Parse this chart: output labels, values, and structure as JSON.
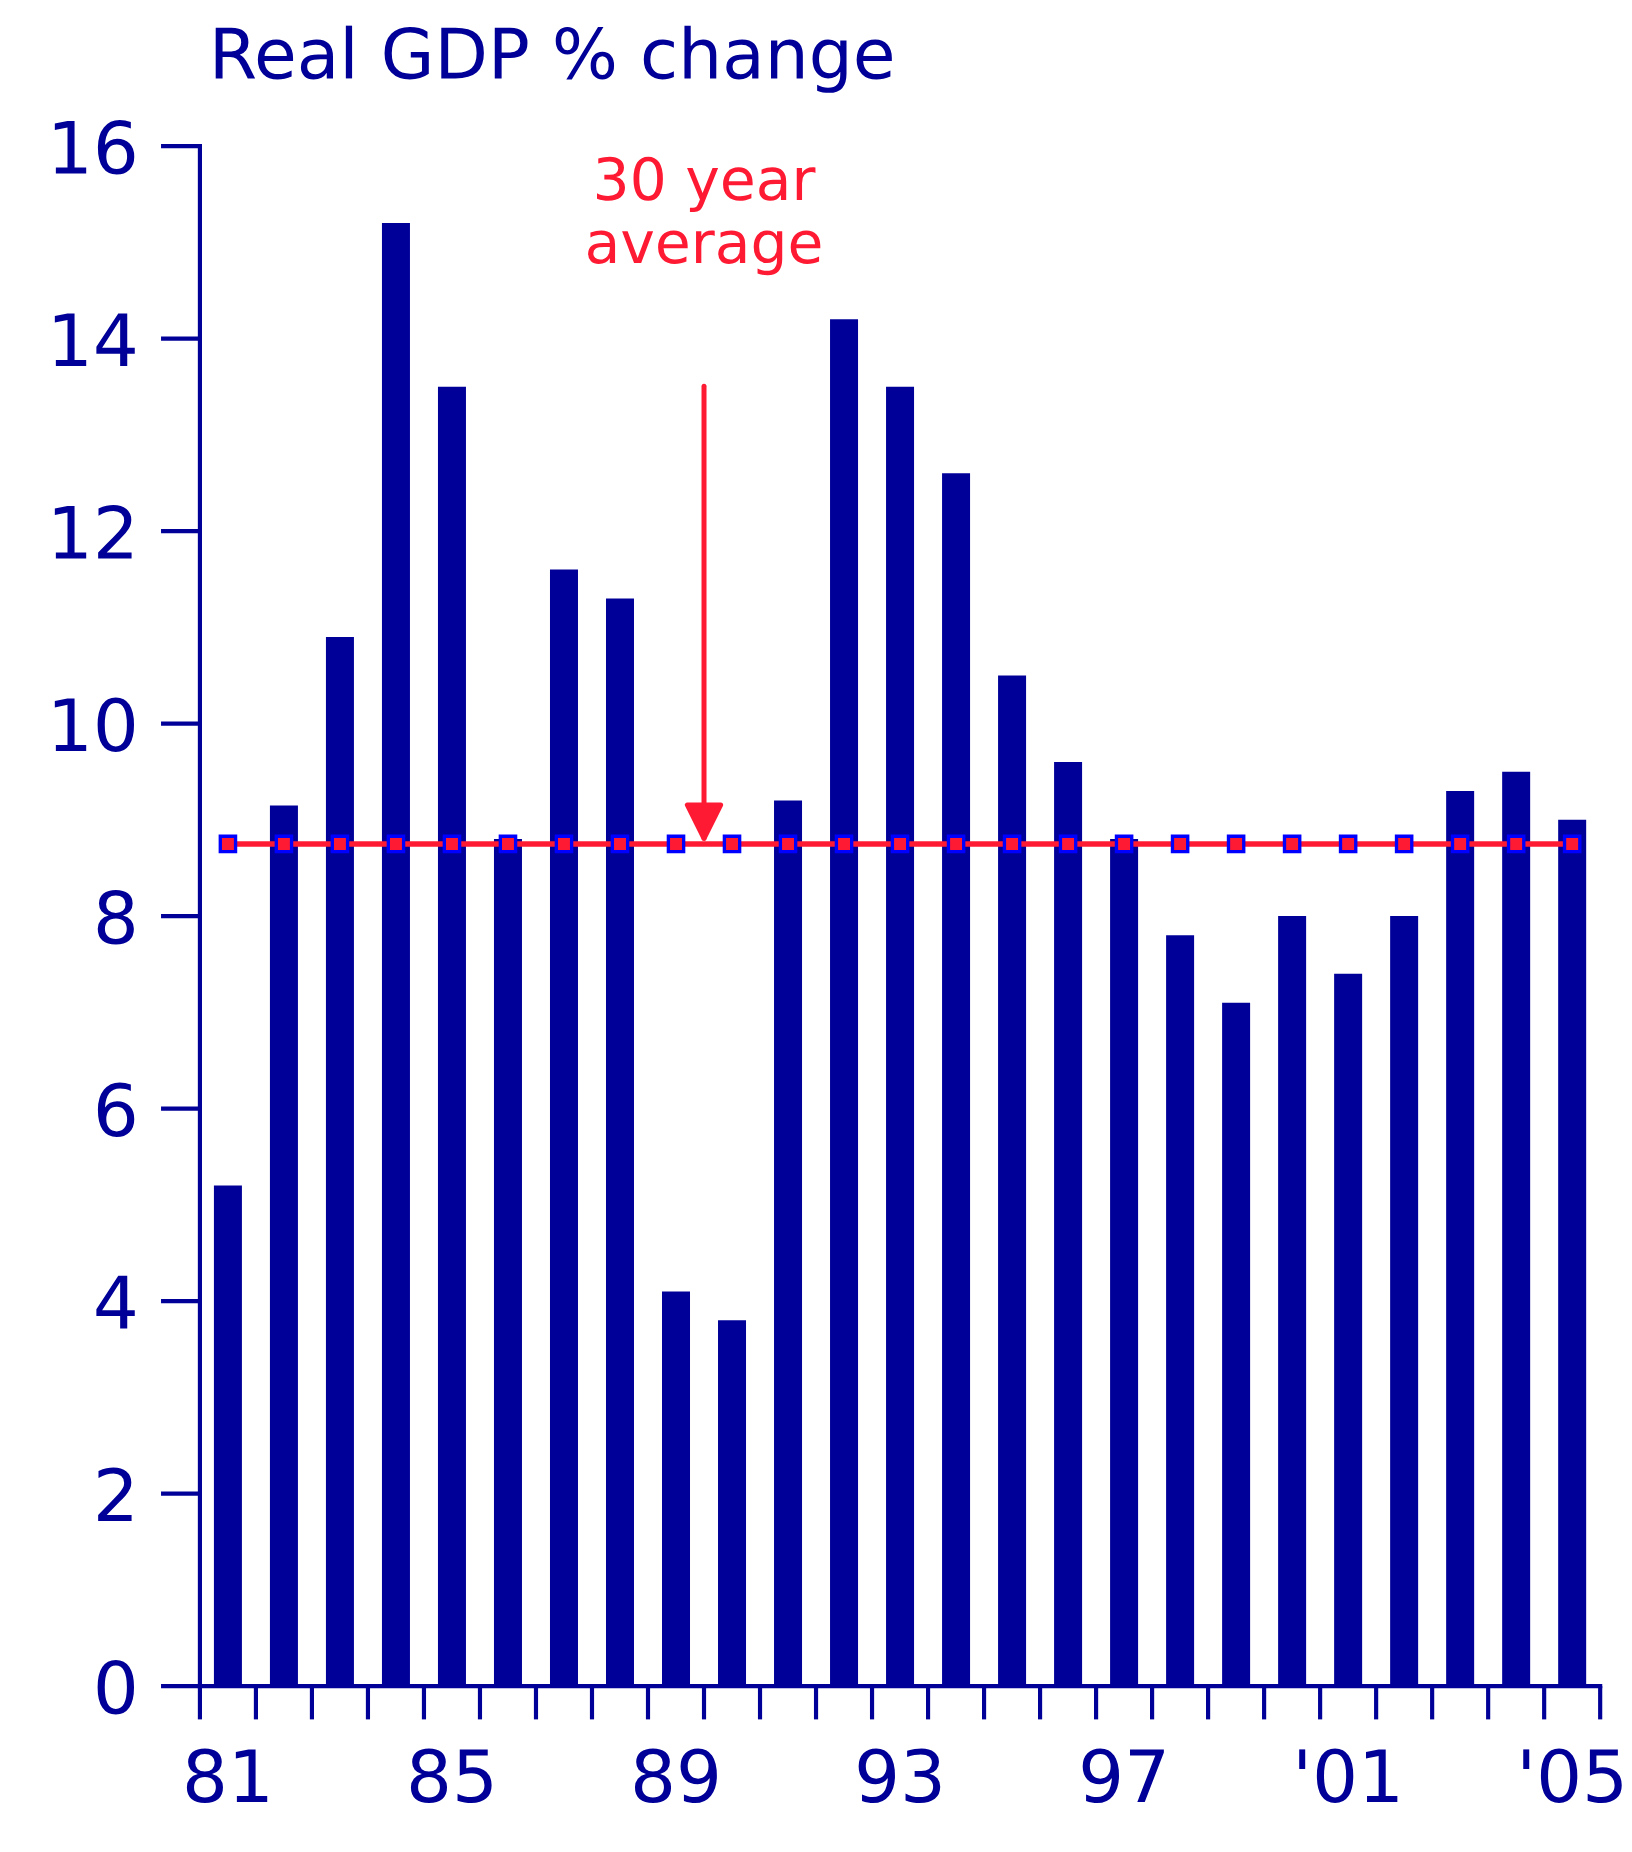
{
  "chart_data": {
    "type": "bar",
    "title": "Real GDP % change",
    "categories": [
      "81",
      null,
      null,
      null,
      "85",
      null,
      null,
      null,
      "89",
      null,
      null,
      null,
      "93",
      null,
      null,
      null,
      "97",
      null,
      null,
      null,
      "'01",
      null,
      null,
      null,
      "'05"
    ],
    "series": [
      {
        "color": "#000099",
        "values": [
          5.2,
          9.15,
          10.9,
          15.2,
          13.5,
          8.8,
          11.6,
          11.3,
          4.1,
          3.8,
          9.2,
          14.2,
          13.5,
          12.6,
          10.5,
          9.6,
          8.8,
          7.8,
          7.1,
          8.0,
          7.4,
          8.0,
          9.3,
          9.5,
          9.0
        ]
      },
      {
        "type": "line",
        "color": "#ff1a33",
        "marker": "square",
        "line_style": "solid",
        "values": [
          8.75,
          8.75,
          8.75,
          8.75,
          8.75,
          8.75,
          8.75,
          8.75,
          8.75,
          8.75,
          8.75,
          8.75,
          8.75,
          8.75,
          8.75,
          8.75,
          8.75,
          8.75,
          8.75,
          8.75,
          8.75,
          8.75,
          8.75,
          8.75,
          8.75
        ]
      }
    ],
    "annotations": [
      "30 year\naverage"
    ],
    "ylim": [
      0,
      16
    ],
    "yticks": [
      0,
      2,
      4,
      6,
      8,
      10,
      12,
      14,
      16
    ],
    "grid": false,
    "legend": false
  }
}
